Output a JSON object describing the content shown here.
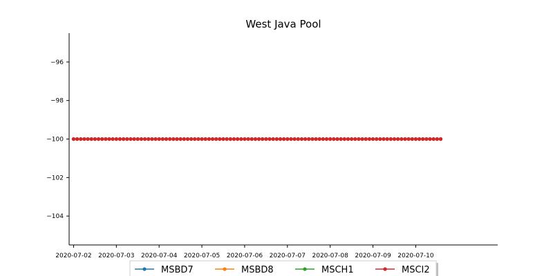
{
  "chart_data": {
    "type": "line",
    "title": "West Java Pool",
    "xlabel": "",
    "ylabel": "",
    "x_range": [
      "2020-07-02",
      "2020-07-10T14:00"
    ],
    "xlim": [
      "2020-07-01T21:30",
      "2020-07-11T22:00"
    ],
    "ylim": [
      -105.5,
      -94.5
    ],
    "x_ticks": [
      "2020-07-02",
      "2020-07-03",
      "2020-07-04",
      "2020-07-05",
      "2020-07-06",
      "2020-07-07",
      "2020-07-08",
      "2020-07-09",
      "2020-07-10"
    ],
    "y_ticks": [
      -96,
      -98,
      -100,
      -102,
      -104
    ],
    "y_tick_labels": [
      "−96",
      "−98",
      "−100",
      "−102",
      "−104"
    ],
    "grid": false,
    "legend_position": "bottom-center",
    "series": [
      {
        "name": "MSBD7",
        "color": "#1f77b4",
        "value": -100
      },
      {
        "name": "MSBD8",
        "color": "#ff7f0e",
        "value": -100
      },
      {
        "name": "MSCH1",
        "color": "#2ca02c",
        "value": -100
      },
      {
        "name": "MSCI2",
        "color": "#d62728",
        "value": -100
      }
    ]
  }
}
